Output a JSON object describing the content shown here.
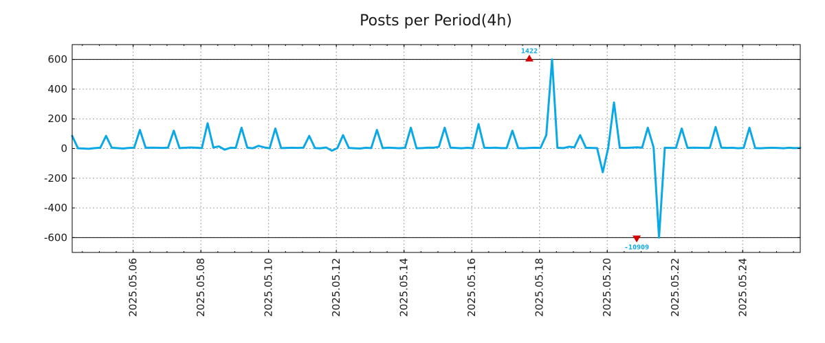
{
  "chart_data": {
    "type": "line",
    "title": "Posts per Period(4h)",
    "xlabel": "",
    "ylabel": "",
    "ylim": [
      -700,
      700
    ],
    "yticks": [
      600,
      400,
      200,
      0,
      -200,
      -400,
      -600
    ],
    "ytick_labels": [
      "600",
      "400",
      "200",
      "0",
      "-200",
      "-400",
      "-600"
    ],
    "x_range_days": [
      0.0,
      21.5
    ],
    "xticks": [
      {
        "day": 1.8,
        "label": "2025.05.06"
      },
      {
        "day": 3.8,
        "label": "2025.05.08"
      },
      {
        "day": 5.8,
        "label": "2025.05.10"
      },
      {
        "day": 7.8,
        "label": "2025.05.12"
      },
      {
        "day": 9.8,
        "label": "2025.05.14"
      },
      {
        "day": 11.8,
        "label": "2025.05.16"
      },
      {
        "day": 13.8,
        "label": "2025.05.18"
      },
      {
        "day": 15.8,
        "label": "2025.05.20"
      },
      {
        "day": 17.8,
        "label": "2025.05.22"
      },
      {
        "day": 19.8,
        "label": "2025.05.24"
      }
    ],
    "grid": true,
    "reference_lines": [
      600,
      -600
    ],
    "series": [
      {
        "name": "posts",
        "color": "#0ba8e6",
        "x": [
          0.0,
          0.17,
          0.33,
          0.5,
          0.67,
          0.83,
          1.0,
          1.17,
          1.33,
          1.5,
          1.67,
          1.83,
          2.0,
          2.17,
          2.33,
          2.5,
          2.67,
          2.83,
          3.0,
          3.17,
          3.33,
          3.5,
          3.67,
          3.83,
          4.0,
          4.17,
          4.33,
          4.5,
          4.67,
          4.83,
          5.0,
          5.17,
          5.33,
          5.5,
          5.67,
          5.83,
          6.0,
          6.17,
          6.33,
          6.5,
          6.67,
          6.83,
          7.0,
          7.17,
          7.33,
          7.5,
          7.67,
          7.83,
          8.0,
          8.17,
          8.33,
          8.5,
          8.67,
          8.83,
          9.0,
          9.17,
          9.33,
          9.5,
          9.67,
          9.83,
          10.0,
          10.17,
          10.33,
          10.5,
          10.67,
          10.83,
          11.0,
          11.17,
          11.33,
          11.5,
          11.67,
          11.83,
          12.0,
          12.17,
          12.33,
          12.5,
          12.67,
          12.83,
          13.0,
          13.17,
          13.33,
          13.5,
          13.67,
          13.83,
          14.0,
          14.17,
          14.33,
          14.5,
          14.67,
          14.83,
          15.0,
          15.17,
          15.33,
          15.5,
          15.67,
          15.83,
          16.0,
          16.17,
          16.33,
          16.5,
          16.67,
          16.83,
          17.0,
          17.17,
          17.33,
          17.5,
          17.67,
          17.83,
          18.0,
          18.17,
          18.33,
          18.5,
          18.67,
          18.83,
          19.0,
          19.17,
          19.33,
          19.5,
          19.67,
          19.83,
          20.0,
          20.17,
          20.33,
          20.5,
          20.67,
          20.83,
          21.0,
          21.17,
          21.33,
          21.5
        ],
        "values": [
          85,
          2,
          0,
          -2,
          3,
          5,
          85,
          5,
          3,
          0,
          4,
          5,
          125,
          5,
          6,
          5,
          4,
          6,
          120,
          3,
          5,
          7,
          5,
          3,
          170,
          6,
          15,
          -8,
          5,
          4,
          140,
          6,
          2,
          18,
          8,
          2,
          135,
          3,
          4,
          5,
          4,
          6,
          85,
          3,
          2,
          7,
          -15,
          3,
          90,
          4,
          2,
          0,
          5,
          3,
          125,
          3,
          6,
          4,
          2,
          5,
          140,
          2,
          3,
          6,
          5,
          12,
          140,
          6,
          4,
          2,
          5,
          2,
          165,
          5,
          4,
          6,
          3,
          3,
          120,
          3,
          2,
          4,
          5,
          4,
          90,
          600,
          5,
          3,
          12,
          8,
          90,
          5,
          4,
          3,
          -160,
          5,
          310,
          5,
          4,
          6,
          8,
          6,
          140,
          7,
          -600,
          5,
          4,
          4,
          135,
          4,
          6,
          5,
          4,
          4,
          145,
          6,
          4,
          5,
          2,
          4,
          140,
          3,
          2,
          4,
          5,
          4,
          2,
          5,
          3,
          4
        ]
      }
    ],
    "annotations": [
      {
        "label": "1422",
        "x": 13.5,
        "y": 600,
        "direction": "up",
        "color": "#0ba8e6",
        "marker_color": "#d40000"
      },
      {
        "label": "-10909",
        "x": 16.67,
        "y": -600,
        "direction": "down",
        "color": "#0ba8e6",
        "marker_color": "#d40000"
      }
    ]
  }
}
